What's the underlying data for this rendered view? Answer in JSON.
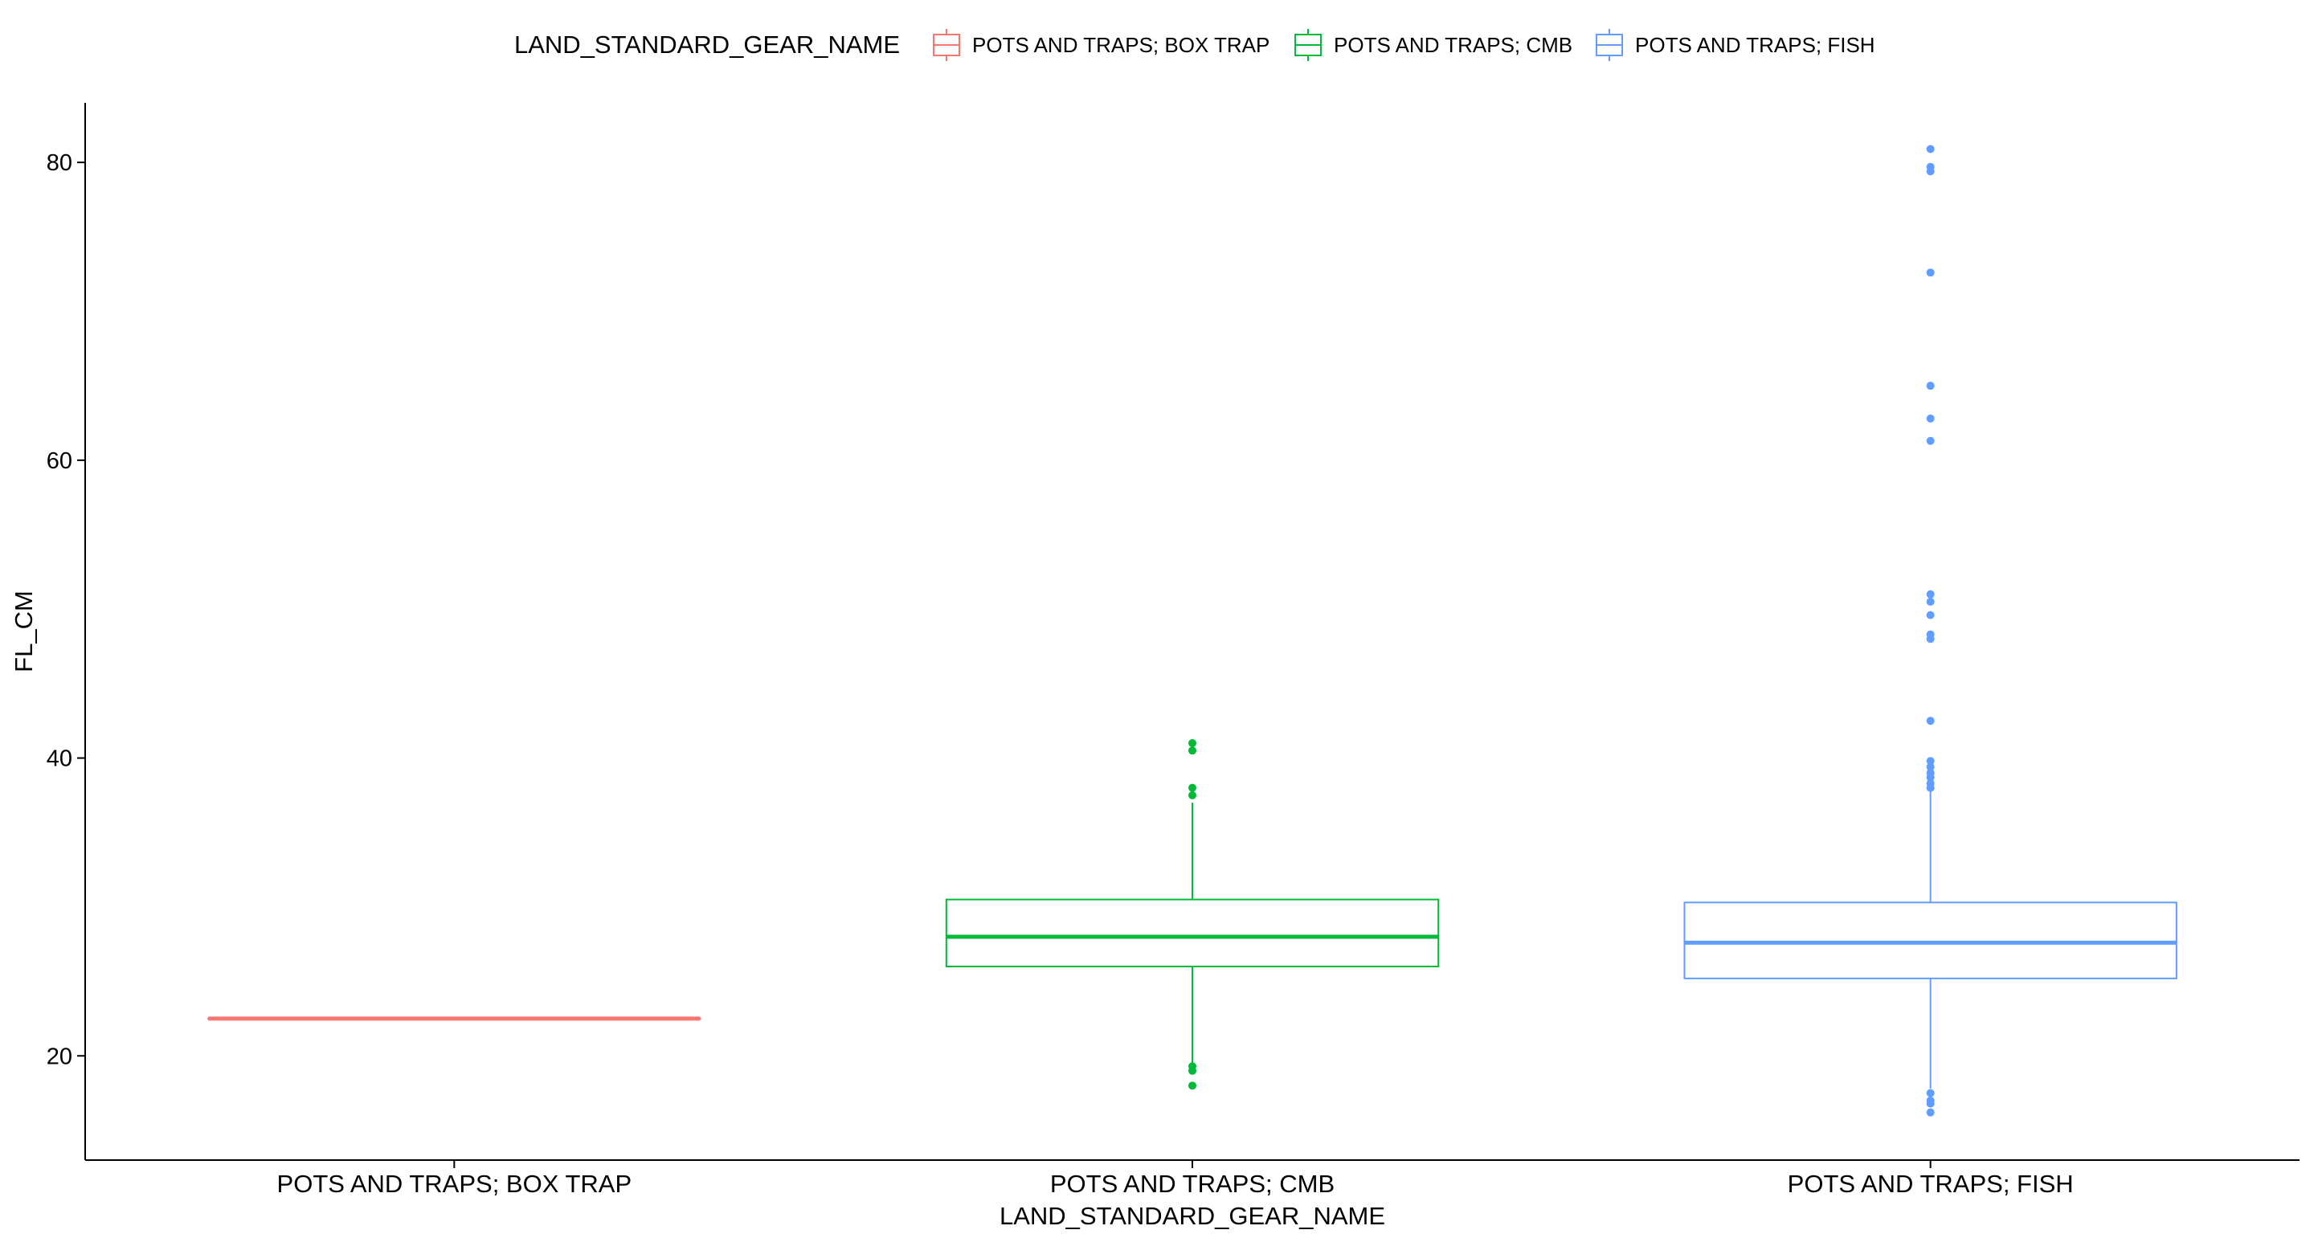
{
  "chart_data": {
    "type": "boxplot",
    "xlabel": "LAND_STANDARD_GEAR_NAME",
    "ylabel": "FL_CM",
    "ylim": [
      13,
      84
    ],
    "yticks": [
      20,
      40,
      60,
      80
    ],
    "grid": false,
    "legend": {
      "title": "LAND_STANDARD_GEAR_NAME",
      "position": "top"
    },
    "categories": [
      "POTS AND TRAPS; BOX TRAP",
      "POTS AND TRAPS; CMB",
      "POTS AND TRAPS; FISH"
    ],
    "series": [
      {
        "name": "POTS AND TRAPS; BOX TRAP",
        "color": "#F8766D",
        "whisker_low": 22.5,
        "q1": 22.5,
        "median": 22.5,
        "q3": 22.5,
        "whisker_high": 22.5,
        "outliers": []
      },
      {
        "name": "POTS AND TRAPS; CMB",
        "color": "#00BA38",
        "whisker_low": 19.5,
        "q1": 26.0,
        "median": 28.0,
        "q3": 30.5,
        "whisker_high": 37.0,
        "outliers": [
          41.0,
          40.5,
          38.0,
          37.5,
          19.3,
          19.0,
          18.0
        ]
      },
      {
        "name": "POTS AND TRAPS; FISH",
        "color": "#619CFF",
        "whisker_low": 17.8,
        "q1": 25.2,
        "median": 27.6,
        "q3": 30.3,
        "whisker_high": 37.8,
        "outliers": [
          80.9,
          79.7,
          79.4,
          72.6,
          65.0,
          62.8,
          61.3,
          51.0,
          50.5,
          49.6,
          48.3,
          48.0,
          42.5,
          39.8,
          39.4,
          39.0,
          38.7,
          38.3,
          38.0,
          17.5,
          17.0,
          16.8,
          16.2
        ]
      }
    ]
  }
}
